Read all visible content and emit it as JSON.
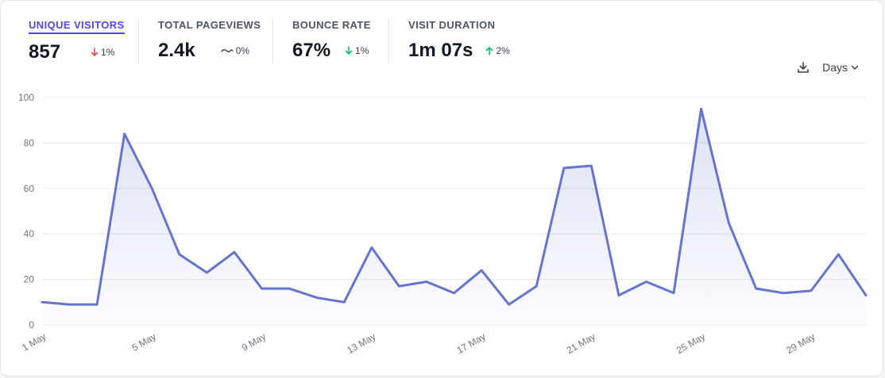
{
  "metrics": [
    {
      "label": "UNIQUE VISITORS",
      "value": "857",
      "change": "1%",
      "direction": "down",
      "active": true
    },
    {
      "label": "TOTAL PAGEVIEWS",
      "value": "2.4k",
      "change": "0%",
      "direction": "flat",
      "active": false
    },
    {
      "label": "BOUNCE RATE",
      "value": "67%",
      "change": "1%",
      "direction": "down-good",
      "active": false
    },
    {
      "label": "VISIT DURATION",
      "value": "1m 07s",
      "change": "2%",
      "direction": "up",
      "active": false
    }
  ],
  "controls": {
    "interval_label": "Days",
    "download_icon": "download-icon",
    "chevron_icon": "chevron-down-icon"
  },
  "colors": {
    "accent": "#4f46e5",
    "line": "#6574cd",
    "down_bad": "#ef4444",
    "down_good": "#10b981",
    "up_good": "#10b981",
    "grid": "#e5e7eb",
    "axis_text": "#6b7280"
  },
  "chart_data": {
    "type": "area",
    "x": [
      "1 May",
      "2 May",
      "3 May",
      "4 May",
      "5 May",
      "6 May",
      "7 May",
      "8 May",
      "9 May",
      "10 May",
      "11 May",
      "12 May",
      "13 May",
      "14 May",
      "15 May",
      "16 May",
      "17 May",
      "18 May",
      "19 May",
      "20 May",
      "21 May",
      "22 May",
      "23 May",
      "24 May",
      "25 May",
      "26 May",
      "27 May",
      "28 May",
      "29 May",
      "30 May",
      "31 May"
    ],
    "series": [
      {
        "values": [
          10,
          9,
          9,
          84,
          60,
          31,
          23,
          32,
          16,
          16,
          12,
          10,
          34,
          17,
          19,
          14,
          24,
          9,
          17,
          69,
          70,
          13,
          19,
          14,
          95,
          45,
          16,
          14,
          15,
          31,
          13
        ]
      }
    ],
    "x_tick_labels": [
      "1 May",
      "5 May",
      "9 May",
      "13 May",
      "17 May",
      "21 May",
      "25 May",
      "29 May"
    ],
    "y_ticks": [
      0,
      20,
      40,
      60,
      80,
      100
    ],
    "ylim": [
      0,
      100
    ],
    "grid": true
  }
}
